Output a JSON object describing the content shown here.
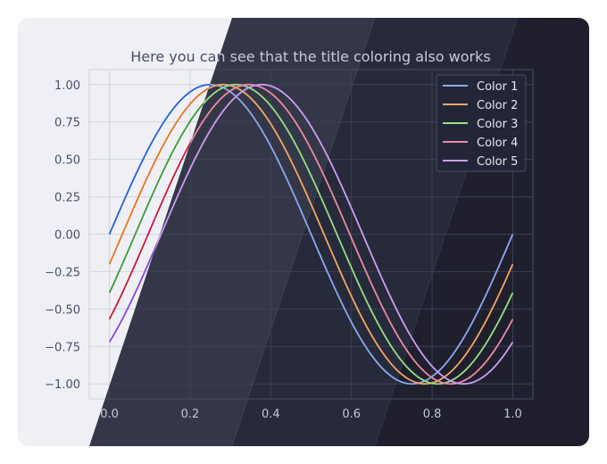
{
  "chart_data": {
    "type": "line",
    "title": "Here you can see that the title coloring also works",
    "xlabel": "",
    "ylabel": "",
    "xlim": [
      -0.05,
      1.05
    ],
    "ylim": [
      -1.1,
      1.1
    ],
    "x_ticks": [
      0.0,
      0.2,
      0.4,
      0.6,
      0.8,
      1.0
    ],
    "x_tick_labels": [
      "0.0",
      "0.2",
      "0.4",
      "0.6",
      "0.8",
      "1.0"
    ],
    "y_ticks": [
      1.0,
      0.75,
      0.5,
      0.25,
      0.0,
      -0.25,
      -0.5,
      -0.75,
      -1.0
    ],
    "y_tick_labels": [
      "1.00",
      "0.75",
      "0.50",
      "0.25",
      "0.00",
      "−0.25",
      "−0.50",
      "−0.75",
      "−1.00"
    ],
    "grid": true,
    "legend_placement": "upper right",
    "function": "y = sin(2*pi*(x - phase))",
    "series": [
      {
        "name": "Color 1",
        "phase": 0.0,
        "color_light": "#2361e0",
        "color_dark": "#8aaaf0"
      },
      {
        "name": "Color 2",
        "phase": 0.032,
        "color_light": "#e8761c",
        "color_dark": "#f5a765"
      },
      {
        "name": "Color 3",
        "phase": 0.064,
        "color_light": "#3c9a33",
        "color_dark": "#97df86"
      },
      {
        "name": "Color 4",
        "phase": 0.096,
        "color_light": "#c81a3a",
        "color_dark": "#ef8aa2"
      },
      {
        "name": "Color 5",
        "phase": 0.128,
        "color_light": "#8a46e0",
        "color_dark": "#cc9ef5"
      }
    ]
  }
}
